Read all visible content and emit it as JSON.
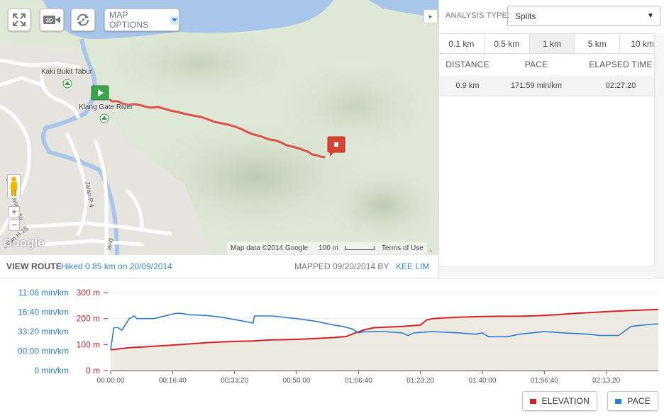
{
  "map": {
    "options_label": "MAP OPTIONS",
    "btn_3d_label": "3D",
    "labels": {
      "kaki_bukit": "Kaki Bukit Tabur",
      "klang_gate": "Klang Gate River",
      "jalan_kolam": "Jalan Kolam Air",
      "jalan_p4": "Jalan P 4",
      "jalan_h15": "Jalan H 15",
      "klang": "lang"
    },
    "zoom_in": "+",
    "zoom_out": "−",
    "logo": "Google",
    "attribution": "Map data ©2014 Google",
    "scale": "100 m",
    "terms": "Terms of Use",
    "colors": {
      "route": "#e0504a",
      "water": "#a8c6ea",
      "start": "#3aa64c",
      "end": "#d94332"
    }
  },
  "panel": {
    "toggle_icon": "▸",
    "analysis_label": "ANALYSIS TYPE:",
    "analysis_value": "Splits",
    "split_tabs": [
      {
        "label": "0.1 km",
        "active": false
      },
      {
        "label": "0.5 km",
        "active": false
      },
      {
        "label": "1 km",
        "active": true
      },
      {
        "label": "5 km",
        "active": false
      },
      {
        "label": "10 km",
        "active": false
      }
    ],
    "columns": [
      "DISTANCE",
      "PACE",
      "ELAPSED TIME"
    ],
    "rows": [
      {
        "distance": "0.9 km",
        "pace": "171:59 min/km",
        "elapsed": "02:27:20"
      }
    ]
  },
  "route": {
    "view_route": "VIEW ROUTE",
    "description": "Hiked 0.85 km on 20/09/2014",
    "mapped_by": "MAPPED 09/20/2014 BY",
    "mapper": "KEE LIM"
  },
  "chart_data": {
    "type": "line",
    "pace_ticks": [
      "11:06 min/km",
      "16:40 min/km",
      "33:20 min/km",
      "00:00 min/km",
      "0 min/km"
    ],
    "elevation_ticks": [
      "300 m",
      "200 m",
      "100 m",
      "0 m"
    ],
    "elevation_range": [
      0,
      300
    ],
    "x_ticks": [
      "00:00:00",
      "00:16:40",
      "00:33:20",
      "00:50:00",
      "01:06:40",
      "01:23:20",
      "01:40:00",
      "01:56:40",
      "02:13:20"
    ],
    "x_tick_seconds": [
      0,
      1000,
      2000,
      3000,
      4000,
      5000,
      6000,
      7000,
      8000
    ],
    "x_range_seconds": [
      0,
      8840
    ],
    "series": [
      {
        "name": "ELEVATION",
        "color": "#d42027",
        "t": [
          0,
          300,
          600,
          1000,
          1300,
          1600,
          2000,
          2300,
          2600,
          3000,
          3300,
          3600,
          3800,
          3950,
          4100,
          4250,
          4450,
          4700,
          5000,
          5100,
          5200,
          5400,
          5700,
          6000,
          6300,
          6600,
          6900,
          7200,
          7500,
          7800,
          8100,
          8400,
          8700,
          8840
        ],
        "values": [
          80,
          88,
          92,
          98,
          103,
          108,
          112,
          114,
          118,
          120,
          123,
          127,
          131,
          145,
          157,
          165,
          167,
          170,
          175,
          195,
          200,
          203,
          206,
          208,
          209,
          209,
          211,
          215,
          220,
          224,
          228,
          231,
          234,
          235
        ]
      },
      {
        "name": "PACE",
        "color": "#2b7bd0",
        "unit": "elevation-axis scale",
        "t": [
          0,
          50,
          120,
          180,
          300,
          380,
          420,
          700,
          1050,
          1150,
          1250,
          1550,
          1800,
          2300,
          2320,
          2600,
          3000,
          3300,
          3600,
          3750,
          3820,
          3900,
          4000,
          4100,
          4400,
          4700,
          4800,
          4900,
          5200,
          5600,
          5900,
          6000,
          6100,
          6400,
          6500,
          6600,
          7000,
          7300,
          7700,
          7900,
          8100,
          8200,
          8400,
          8600,
          8840
        ],
        "values": [
          80,
          165,
          165,
          155,
          200,
          210,
          200,
          200,
          220,
          220,
          215,
          212,
          205,
          183,
          210,
          210,
          200,
          190,
          175,
          170,
          165,
          160,
          145,
          150,
          150,
          145,
          135,
          145,
          150,
          145,
          140,
          145,
          130,
          130,
          135,
          140,
          150,
          145,
          140,
          135,
          135,
          135,
          170,
          175,
          180
        ]
      }
    ]
  }
}
